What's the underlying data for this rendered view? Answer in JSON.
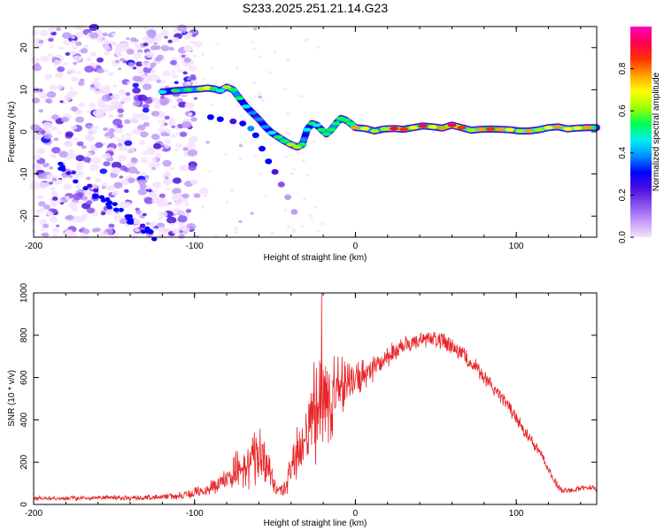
{
  "title": "S233.2025.251.21.14.G23",
  "chart_data": [
    {
      "type": "heatmap",
      "xlabel": "Height of straight line (km)",
      "ylabel": "Frequency (Hz)",
      "xlim": [
        -200,
        150
      ],
      "ylim": [
        -25,
        25
      ],
      "xticks": [
        -200,
        -100,
        0,
        100
      ],
      "yticks": [
        -20,
        -10,
        0,
        10,
        20
      ],
      "colorbar": {
        "label": "Normalized spectral amplitude",
        "range": [
          0,
          1
        ],
        "ticks": [
          "0.0",
          "0.2",
          "0.4",
          "0.6",
          "0.8"
        ],
        "tick_values": [
          0,
          0.2,
          0.4,
          0.6,
          0.8
        ],
        "colors": [
          "#f4e2ff",
          "#c09af8",
          "#8a50f0",
          "#4a10e0",
          "#0000ff",
          "#0090ff",
          "#00f0f0",
          "#00ff50",
          "#a0ff00",
          "#ffff00",
          "#ffa000",
          "#ff3000",
          "#ff0050",
          "#ff00c0"
        ]
      },
      "ridge": [
        [
          -120,
          9.5,
          0.45
        ],
        [
          -112,
          9.8,
          0.5
        ],
        [
          -104,
          10.0,
          0.55
        ],
        [
          -96,
          10.2,
          0.62
        ],
        [
          -92,
          10.4,
          0.66
        ],
        [
          -88,
          10.2,
          0.55
        ],
        [
          -84,
          9.8,
          0.45
        ],
        [
          -80,
          10.6,
          0.58
        ],
        [
          -76,
          10.0,
          0.55
        ],
        [
          -72,
          8.0,
          0.5
        ],
        [
          -68,
          6.0,
          0.45
        ],
        [
          -64,
          4.5,
          0.42
        ],
        [
          -60,
          3.0,
          0.4
        ],
        [
          -56,
          1.2,
          0.42
        ],
        [
          -52,
          -0.2,
          0.45
        ],
        [
          -48,
          -1.2,
          0.5
        ],
        [
          -44,
          -2.2,
          0.55
        ],
        [
          -40,
          -3.0,
          0.58
        ],
        [
          -36,
          -3.6,
          0.62
        ],
        [
          -33,
          -3.0,
          0.55
        ],
        [
          -30,
          0.5,
          0.45
        ],
        [
          -27,
          2.0,
          0.5
        ],
        [
          -24,
          1.6,
          0.45
        ],
        [
          -21,
          0.5,
          0.5
        ],
        [
          -18,
          -0.5,
          0.55
        ],
        [
          -15,
          0.5,
          0.55
        ],
        [
          -12,
          2.0,
          0.5
        ],
        [
          -9,
          3.2,
          0.52
        ],
        [
          -6,
          2.8,
          0.55
        ],
        [
          -3,
          2.0,
          0.5
        ],
        [
          0,
          1.0,
          0.72
        ],
        [
          6,
          0.8,
          0.66
        ],
        [
          12,
          0.2,
          0.58
        ],
        [
          18,
          0.7,
          0.62
        ],
        [
          24,
          0.8,
          0.92
        ],
        [
          30,
          0.6,
          0.8
        ],
        [
          36,
          1.0,
          0.7
        ],
        [
          42,
          1.4,
          0.86
        ],
        [
          48,
          1.2,
          0.7
        ],
        [
          54,
          0.9,
          0.74
        ],
        [
          60,
          1.6,
          0.9
        ],
        [
          66,
          1.0,
          0.8
        ],
        [
          72,
          0.4,
          0.62
        ],
        [
          78,
          0.6,
          0.75
        ],
        [
          84,
          0.7,
          0.82
        ],
        [
          90,
          0.6,
          0.72
        ],
        [
          96,
          0.5,
          0.66
        ],
        [
          102,
          0.2,
          0.58
        ],
        [
          108,
          0.2,
          0.74
        ],
        [
          114,
          0.5,
          0.6
        ],
        [
          120,
          1.0,
          0.66
        ],
        [
          126,
          1.2,
          0.72
        ],
        [
          132,
          0.7,
          0.68
        ],
        [
          138,
          0.9,
          0.7
        ],
        [
          144,
          1.0,
          0.74
        ],
        [
          150,
          1.0,
          0.72
        ]
      ],
      "branch": [
        [
          -90,
          3.5,
          0.3
        ],
        [
          -84,
          3.0,
          0.3
        ],
        [
          -76,
          2.5,
          0.28
        ],
        [
          -70,
          2.0,
          0.35
        ],
        [
          -65,
          0.8,
          0.42
        ],
        [
          -62,
          -0.8,
          0.35
        ],
        [
          -58,
          -4.0,
          0.3
        ],
        [
          -54,
          -7.0,
          0.3
        ],
        [
          -50,
          -9.5,
          0.25
        ],
        [
          -46,
          -12.5,
          0.18
        ],
        [
          -42,
          -15.5,
          0.12
        ],
        [
          -38,
          -19.0,
          0.08
        ]
      ]
    },
    {
      "type": "line",
      "xlabel": "Height of straight line (km)",
      "ylabel": "SNR (10 * v/v)",
      "xlim": [
        -200,
        150
      ],
      "ylim": [
        0,
        1000
      ],
      "xticks": [
        -200,
        -100,
        0,
        100
      ],
      "yticks": [
        0,
        200,
        400,
        600,
        800,
        1000
      ],
      "color": "#e8262a",
      "series": [
        {
          "name": "SNR",
          "envelope": [
            [
              -200,
              30,
              12
            ],
            [
              -180,
              28,
              10
            ],
            [
              -160,
              32,
              12
            ],
            [
              -140,
              30,
              12
            ],
            [
              -120,
              35,
              15
            ],
            [
              -110,
              40,
              18
            ],
            [
              -100,
              55,
              25
            ],
            [
              -90,
              80,
              35
            ],
            [
              -80,
              120,
              60
            ],
            [
              -75,
              170,
              100
            ],
            [
              -70,
              150,
              80
            ],
            [
              -65,
              190,
              120
            ],
            [
              -60,
              230,
              150
            ],
            [
              -56,
              200,
              120
            ],
            [
              -52,
              120,
              60
            ],
            [
              -48,
              60,
              30
            ],
            [
              -44,
              80,
              40
            ],
            [
              -40,
              150,
              100
            ],
            [
              -35,
              260,
              150
            ],
            [
              -30,
              340,
              200
            ],
            [
              -26,
              420,
              250
            ],
            [
              -22,
              480,
              280
            ],
            [
              -20,
              560,
              300
            ],
            [
              -18,
              480,
              250
            ],
            [
              -14,
              520,
              220
            ],
            [
              -10,
              560,
              160
            ],
            [
              -5,
              560,
              120
            ],
            [
              0,
              580,
              90
            ],
            [
              10,
              640,
              70
            ],
            [
              20,
              700,
              55
            ],
            [
              30,
              750,
              45
            ],
            [
              40,
              780,
              40
            ],
            [
              48,
              785,
              40
            ],
            [
              55,
              770,
              40
            ],
            [
              65,
              720,
              40
            ],
            [
              75,
              650,
              40
            ],
            [
              85,
              560,
              35
            ],
            [
              95,
              460,
              35
            ],
            [
              105,
              350,
              30
            ],
            [
              115,
              240,
              25
            ],
            [
              122,
              130,
              22
            ],
            [
              128,
              65,
              15
            ],
            [
              135,
              70,
              15
            ],
            [
              142,
              80,
              15
            ],
            [
              150,
              75,
              15
            ]
          ],
          "spike": [
            -21,
            1000
          ]
        }
      ]
    }
  ]
}
